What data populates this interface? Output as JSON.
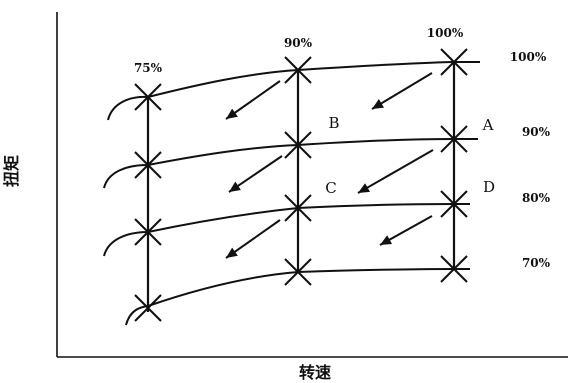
{
  "chart_data": {
    "type": "line",
    "xlabel": "转速",
    "ylabel": "扭矩",
    "speed_line_labels": [
      "75%",
      "90%",
      "100%"
    ],
    "load_line_labels": [
      "100%",
      "90%",
      "80%",
      "70%"
    ],
    "point_labels": [
      "A",
      "B",
      "C",
      "D"
    ],
    "grid": false,
    "color": "#111111"
  }
}
